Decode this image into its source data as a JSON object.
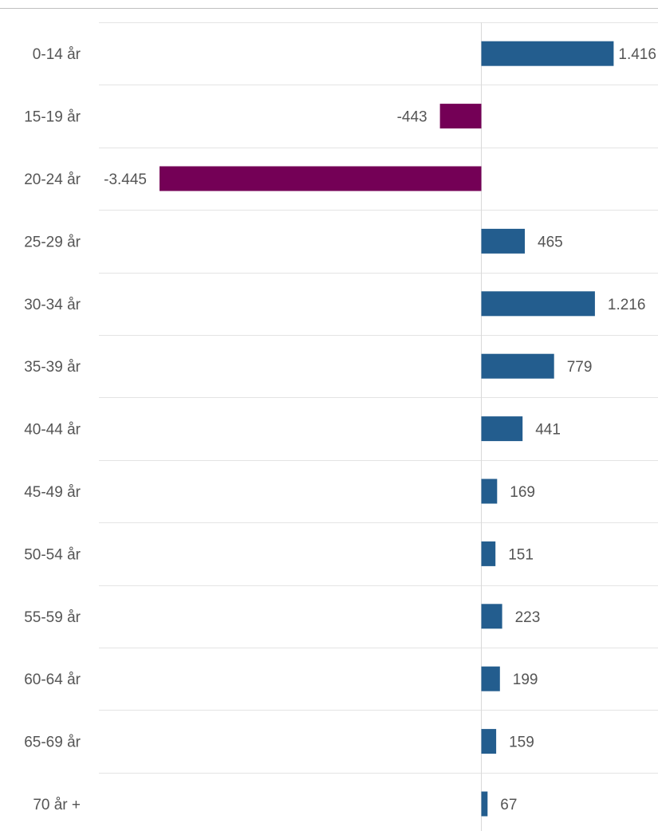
{
  "chart_data": {
    "type": "bar",
    "orientation": "horizontal",
    "categories": [
      "0-14 år",
      "15-19 år",
      "20-24 år",
      "25-29 år",
      "30-34 år",
      "35-39 år",
      "40-44 år",
      "45-49 år",
      "50-54 år",
      "55-59 år",
      "60-64 år",
      "65-69 år",
      "70 år +"
    ],
    "values": [
      1416,
      -443,
      -3445,
      465,
      1216,
      779,
      441,
      169,
      151,
      223,
      199,
      159,
      67
    ],
    "value_labels": [
      "1.416",
      "-443",
      "-3.445",
      "465",
      "1.216",
      "779",
      "441",
      "169",
      "151",
      "223",
      "199",
      "159",
      "67"
    ],
    "title": "",
    "xlabel": "",
    "ylabel": "",
    "xlim": [
      -4100,
      1900
    ],
    "grid": false,
    "colors": {
      "positive": "#235d8e",
      "negative": "#740056",
      "gridline": "#e4e4e4",
      "zero_line": "#d9d9d9",
      "top_rule": "#bfbfbf",
      "label_text": "#555555"
    }
  }
}
